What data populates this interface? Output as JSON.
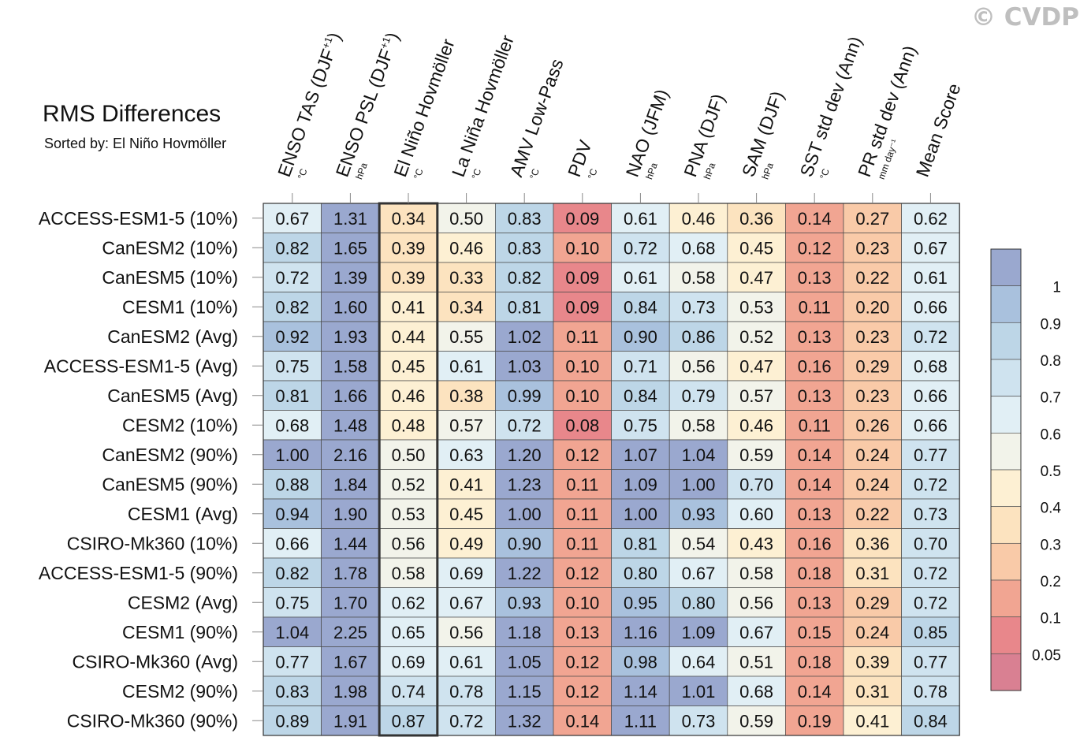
{
  "watermark": "© CVDP",
  "chart_data": {
    "type": "heatmap",
    "title": "RMS Differences",
    "subtitle": "Sorted by: El Niño Hovmöller",
    "columns": [
      {
        "name": "ENSO TAS (DJF",
        "sup": "+1",
        "close": ")",
        "unit": "°C"
      },
      {
        "name": "ENSO PSL (DJF",
        "sup": "+1",
        "close": ")",
        "unit": "hPa"
      },
      {
        "name": "El Niño Hovmöller",
        "sup": "",
        "close": "",
        "unit": "°C"
      },
      {
        "name": "La Niña Hovmöller",
        "sup": "",
        "close": "",
        "unit": "°C"
      },
      {
        "name": "AMV Low-Pass",
        "sup": "",
        "close": "",
        "unit": "°C"
      },
      {
        "name": "PDV",
        "sup": "",
        "close": "",
        "unit": "°C"
      },
      {
        "name": "NAO (JFM)",
        "sup": "",
        "close": "",
        "unit": "hPa"
      },
      {
        "name": "PNA (DJF)",
        "sup": "",
        "close": "",
        "unit": "hPa"
      },
      {
        "name": "SAM (DJF)",
        "sup": "",
        "close": "",
        "unit": "hPa"
      },
      {
        "name": "SST std dev (Ann)",
        "sup": "",
        "close": "",
        "unit": "°C"
      },
      {
        "name": "PR std dev (Ann)",
        "sup": "",
        "close": "",
        "unit": "mm day⁻¹"
      },
      {
        "name": "Mean Score",
        "sup": "",
        "close": "",
        "unit": ""
      }
    ],
    "sorted_column": 2,
    "rows": [
      "ACCESS-ESM1-5 (10%)",
      "CanESM2 (10%)",
      "CanESM5 (10%)",
      "CESM1 (10%)",
      "CanESM2 (Avg)",
      "ACCESS-ESM1-5 (Avg)",
      "CanESM5 (Avg)",
      "CESM2 (10%)",
      "CanESM2 (90%)",
      "CanESM5 (90%)",
      "CESM1 (Avg)",
      "CSIRO-Mk360 (10%)",
      "ACCESS-ESM1-5 (90%)",
      "CESM2 (Avg)",
      "CESM1 (90%)",
      "CSIRO-Mk360 (Avg)",
      "CESM2 (90%)",
      "CSIRO-Mk360 (90%)"
    ],
    "values": [
      [
        "0.67",
        "1.31",
        "0.34",
        "0.50",
        "0.83",
        "0.09",
        "0.61",
        "0.46",
        "0.36",
        "0.14",
        "0.27",
        "0.62"
      ],
      [
        "0.82",
        "1.65",
        "0.39",
        "0.46",
        "0.83",
        "0.10",
        "0.72",
        "0.68",
        "0.45",
        "0.12",
        "0.23",
        "0.67"
      ],
      [
        "0.72",
        "1.39",
        "0.39",
        "0.33",
        "0.82",
        "0.09",
        "0.61",
        "0.58",
        "0.47",
        "0.13",
        "0.22",
        "0.61"
      ],
      [
        "0.82",
        "1.60",
        "0.41",
        "0.34",
        "0.81",
        "0.09",
        "0.84",
        "0.73",
        "0.53",
        "0.11",
        "0.20",
        "0.66"
      ],
      [
        "0.92",
        "1.93",
        "0.44",
        "0.55",
        "1.02",
        "0.11",
        "0.90",
        "0.86",
        "0.52",
        "0.13",
        "0.23",
        "0.72"
      ],
      [
        "0.75",
        "1.58",
        "0.45",
        "0.61",
        "1.03",
        "0.10",
        "0.71",
        "0.56",
        "0.47",
        "0.16",
        "0.29",
        "0.68"
      ],
      [
        "0.81",
        "1.66",
        "0.46",
        "0.38",
        "0.99",
        "0.10",
        "0.84",
        "0.79",
        "0.57",
        "0.13",
        "0.23",
        "0.66"
      ],
      [
        "0.68",
        "1.48",
        "0.48",
        "0.57",
        "0.72",
        "0.08",
        "0.75",
        "0.58",
        "0.46",
        "0.11",
        "0.26",
        "0.66"
      ],
      [
        "1.00",
        "2.16",
        "0.50",
        "0.63",
        "1.20",
        "0.12",
        "1.07",
        "1.04",
        "0.59",
        "0.14",
        "0.24",
        "0.77"
      ],
      [
        "0.88",
        "1.84",
        "0.52",
        "0.41",
        "1.23",
        "0.11",
        "1.09",
        "1.00",
        "0.70",
        "0.14",
        "0.24",
        "0.72"
      ],
      [
        "0.94",
        "1.90",
        "0.53",
        "0.45",
        "1.00",
        "0.11",
        "1.00",
        "0.93",
        "0.60",
        "0.13",
        "0.22",
        "0.73"
      ],
      [
        "0.66",
        "1.44",
        "0.56",
        "0.49",
        "0.90",
        "0.11",
        "0.81",
        "0.54",
        "0.43",
        "0.16",
        "0.36",
        "0.70"
      ],
      [
        "0.82",
        "1.78",
        "0.58",
        "0.69",
        "1.22",
        "0.12",
        "0.80",
        "0.67",
        "0.58",
        "0.18",
        "0.31",
        "0.72"
      ],
      [
        "0.75",
        "1.70",
        "0.62",
        "0.67",
        "0.93",
        "0.10",
        "0.95",
        "0.80",
        "0.56",
        "0.13",
        "0.29",
        "0.72"
      ],
      [
        "1.04",
        "2.25",
        "0.65",
        "0.56",
        "1.18",
        "0.13",
        "1.16",
        "1.09",
        "0.67",
        "0.15",
        "0.24",
        "0.85"
      ],
      [
        "0.77",
        "1.67",
        "0.69",
        "0.61",
        "1.05",
        "0.12",
        "0.98",
        "0.64",
        "0.51",
        "0.18",
        "0.39",
        "0.77"
      ],
      [
        "0.83",
        "1.98",
        "0.74",
        "0.78",
        "1.15",
        "0.12",
        "1.14",
        "1.01",
        "0.68",
        "0.14",
        "0.31",
        "0.78"
      ],
      [
        "0.89",
        "1.91",
        "0.87",
        "0.72",
        "1.32",
        "0.14",
        "1.11",
        "0.73",
        "0.59",
        "0.19",
        "0.41",
        "0.84"
      ]
    ],
    "colorbar": {
      "levels": [
        "1",
        "0.9",
        "0.8",
        "0.7",
        "0.6",
        "0.5",
        "0.4",
        "0.3",
        "0.2",
        "0.1",
        "0.05"
      ],
      "colors": [
        "#9aa8cf",
        "#a9c1dd",
        "#bdd6e7",
        "#cfe3ef",
        "#e1eff5",
        "#f2f3ea",
        "#fdf0d3",
        "#fce3bf",
        "#f9caa8",
        "#f1a592",
        "#e8878b",
        "#d98092"
      ]
    }
  }
}
